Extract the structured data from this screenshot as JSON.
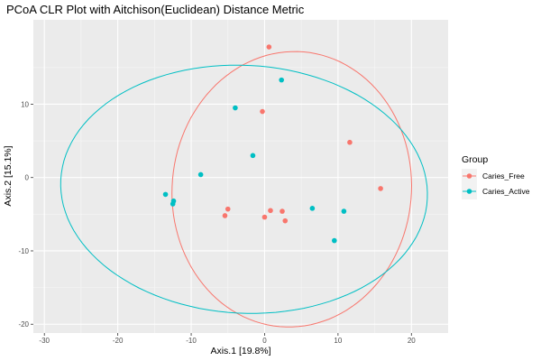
{
  "chart_data": {
    "type": "scatter",
    "title": "PCoA CLR Plot with Aitchison(Euclidean) Distance Metric",
    "xlabel": "Axis.1   [19.8%]",
    "ylabel": "Axis.2   [15.1%]",
    "xlim": [
      -31.5,
      25
    ],
    "ylim": [
      -21.2,
      21.5
    ],
    "x_ticks": [
      -30,
      -20,
      -10,
      0,
      10,
      20
    ],
    "x_tick_labels": [
      "-30",
      "-20",
      "-10",
      "0",
      "10",
      "20"
    ],
    "y_ticks": [
      -20,
      -10,
      0,
      10
    ],
    "y_tick_labels": [
      "-20",
      "-10",
      "0",
      "10"
    ],
    "grid": true,
    "legend": {
      "title": "Group",
      "placement": "right"
    },
    "series": [
      {
        "name": "Caries_Free",
        "color": "#F8766D",
        "points": [
          {
            "x": 0.6,
            "y": 17.8
          },
          {
            "x": -0.3,
            "y": 9.0
          },
          {
            "x": 11.6,
            "y": 4.8
          },
          {
            "x": 15.8,
            "y": -1.5
          },
          {
            "x": -5.0,
            "y": -4.3
          },
          {
            "x": -5.4,
            "y": -5.2
          },
          {
            "x": 0.8,
            "y": -4.5
          },
          {
            "x": 2.4,
            "y": -4.6
          },
          {
            "x": 0.0,
            "y": -5.4
          },
          {
            "x": 2.8,
            "y": -5.9
          }
        ],
        "ellipse": {
          "cx": 3.7,
          "cy": -1.6,
          "rx": 16.3,
          "ry": 18.8,
          "angle_deg": -5
        }
      },
      {
        "name": "Caries_Active",
        "color": "#00BFC4",
        "points": [
          {
            "x": 2.3,
            "y": 13.3
          },
          {
            "x": -4.0,
            "y": 9.5
          },
          {
            "x": -1.6,
            "y": 3.0
          },
          {
            "x": -8.7,
            "y": 0.4
          },
          {
            "x": -13.5,
            "y": -2.3
          },
          {
            "x": -12.4,
            "y": -3.2
          },
          {
            "x": -12.5,
            "y": -3.6
          },
          {
            "x": 6.5,
            "y": -4.2
          },
          {
            "x": 10.8,
            "y": -4.6
          },
          {
            "x": 9.5,
            "y": -8.6
          }
        ],
        "ellipse": {
          "cx": -2.8,
          "cy": -1.6,
          "rx": 25.0,
          "ry": 16.9,
          "angle_deg": -3
        }
      }
    ]
  }
}
